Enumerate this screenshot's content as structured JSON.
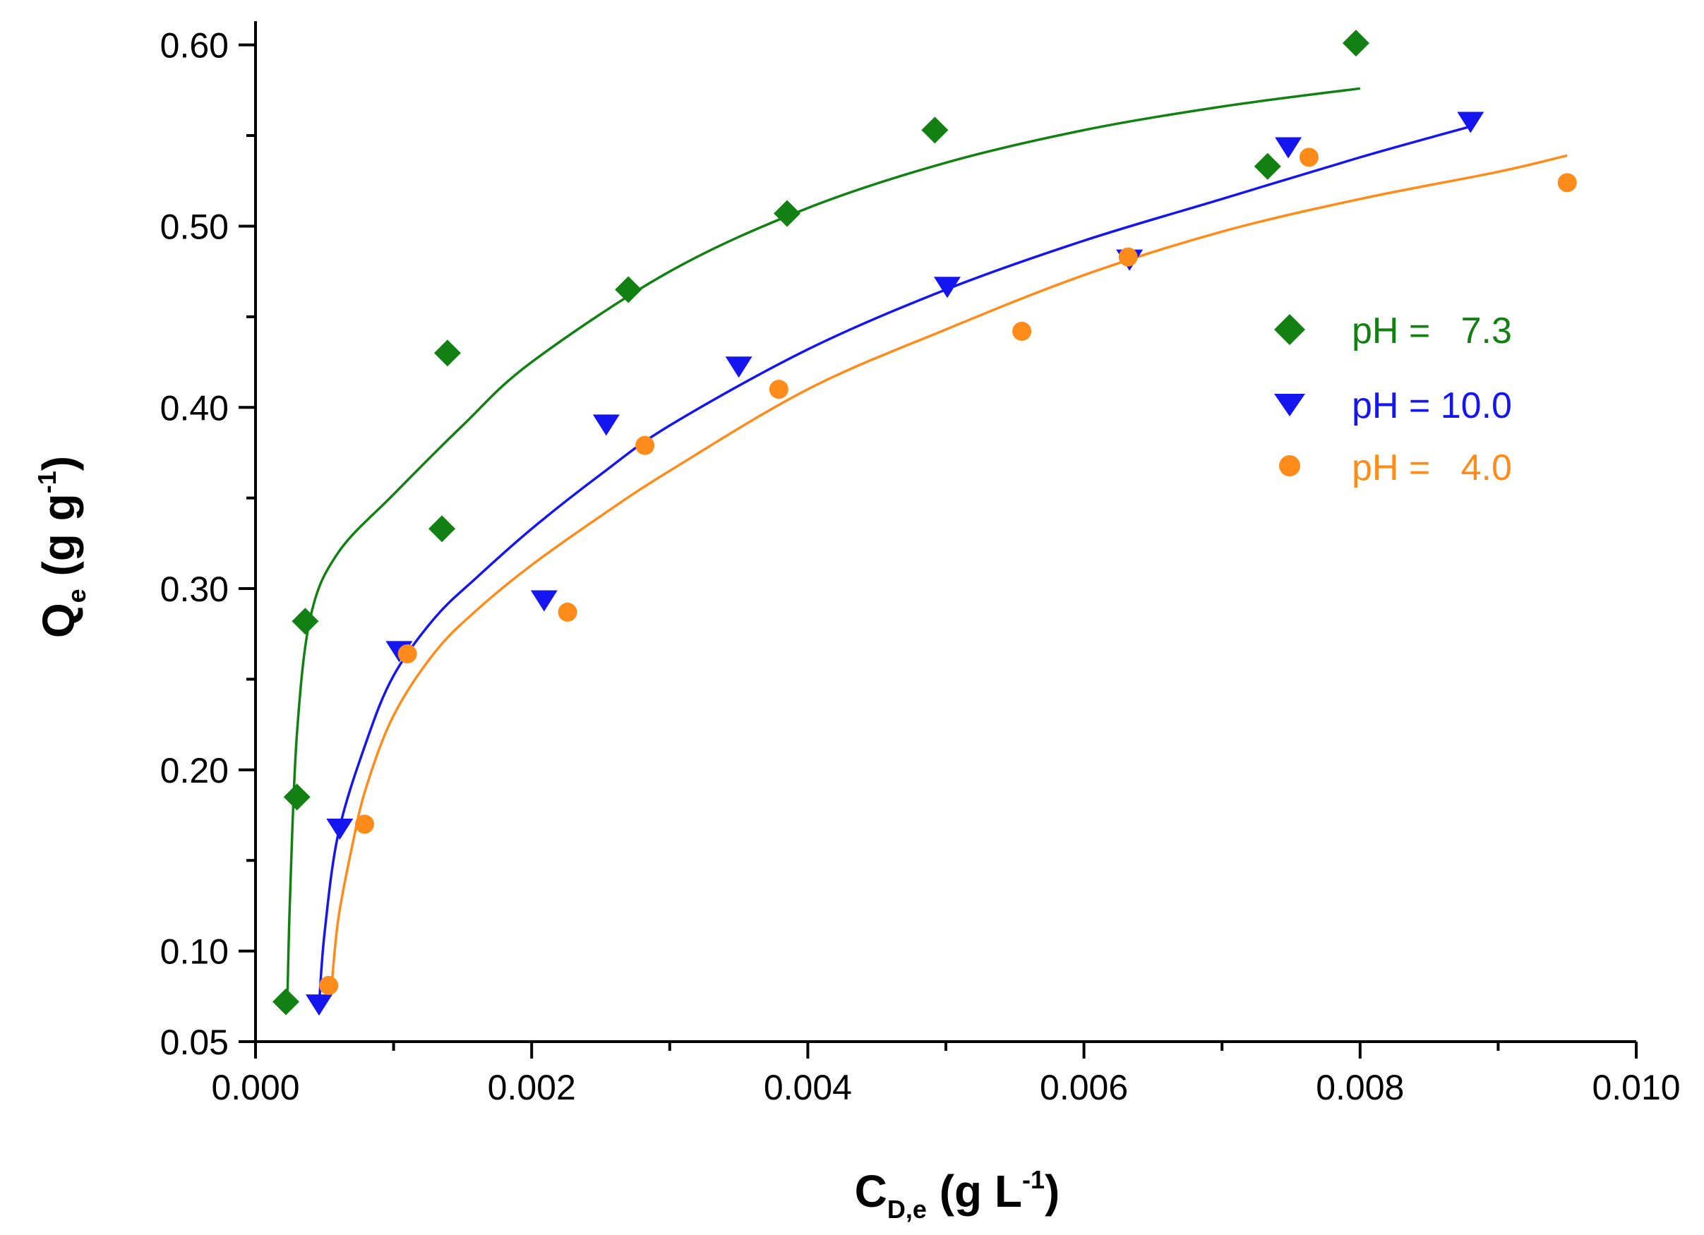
{
  "chart_data": {
    "type": "scatter",
    "title": "",
    "xlabel": {
      "main": "C",
      "sub": "D,e",
      "unit_pre": " (g L",
      "unit_sup": "-1",
      "unit_post": ")"
    },
    "ylabel": {
      "main": "Q",
      "sub": "e",
      "unit_pre": " (g g",
      "unit_sup": "-1",
      "unit_post": ")"
    },
    "xlim": [
      0,
      0.01
    ],
    "ylim": [
      0.05,
      0.61
    ],
    "x_ticks": [
      "0.000",
      "0.002",
      "0.004",
      "0.006",
      "0.008",
      "0.010"
    ],
    "y_ticks": [
      "0.05",
      "0.10",
      "0.20",
      "0.30",
      "0.40",
      "0.50",
      "0.60"
    ],
    "grid": false,
    "legend_position": "right-middle",
    "series": [
      {
        "name": "pH =   7.3",
        "color": "#138013",
        "marker": "diamond",
        "points": [
          [
            0.00022,
            0.072
          ],
          [
            0.0003,
            0.185
          ],
          [
            0.00036,
            0.282
          ],
          [
            0.00135,
            0.333
          ],
          [
            0.00139,
            0.43
          ],
          [
            0.0027,
            0.465
          ],
          [
            0.00385,
            0.507
          ],
          [
            0.00492,
            0.553
          ],
          [
            0.00733,
            0.533
          ],
          [
            0.00797,
            0.601
          ]
        ],
        "fit": [
          [
            0.00023,
            0.07
          ],
          [
            0.00025,
            0.13
          ],
          [
            0.0003,
            0.22
          ],
          [
            0.0004,
            0.285
          ],
          [
            0.0006,
            0.32
          ],
          [
            0.001,
            0.352
          ],
          [
            0.0015,
            0.39
          ],
          [
            0.002,
            0.425
          ],
          [
            0.003,
            0.475
          ],
          [
            0.004,
            0.51
          ],
          [
            0.005,
            0.535
          ],
          [
            0.006,
            0.553
          ],
          [
            0.007,
            0.566
          ],
          [
            0.008,
            0.576
          ]
        ]
      },
      {
        "name": "pH = 10.0",
        "color": "#1515f0",
        "marker": "triangle-down",
        "points": [
          [
            0.00046,
            0.071
          ],
          [
            0.00061,
            0.168
          ],
          [
            0.00104,
            0.266
          ],
          [
            0.00209,
            0.294
          ],
          [
            0.00254,
            0.391
          ],
          [
            0.0035,
            0.423
          ],
          [
            0.00501,
            0.467
          ],
          [
            0.00633,
            0.482
          ],
          [
            0.00748,
            0.544
          ],
          [
            0.0088,
            0.558
          ]
        ],
        "fit": [
          [
            0.00046,
            0.07
          ],
          [
            0.0005,
            0.11
          ],
          [
            0.0006,
            0.165
          ],
          [
            0.0008,
            0.215
          ],
          [
            0.001,
            0.252
          ],
          [
            0.0013,
            0.284
          ],
          [
            0.0016,
            0.306
          ],
          [
            0.002,
            0.333
          ],
          [
            0.0025,
            0.363
          ],
          [
            0.003,
            0.39
          ],
          [
            0.004,
            0.432
          ],
          [
            0.005,
            0.465
          ],
          [
            0.006,
            0.492
          ],
          [
            0.007,
            0.515
          ],
          [
            0.008,
            0.538
          ],
          [
            0.0088,
            0.555
          ]
        ]
      },
      {
        "name": "pH =   4.0",
        "color": "#ff8c1a",
        "marker": "circle",
        "points": [
          [
            0.00053,
            0.081
          ],
          [
            0.00079,
            0.17
          ],
          [
            0.0011,
            0.264
          ],
          [
            0.00226,
            0.287
          ],
          [
            0.00282,
            0.379
          ],
          [
            0.00379,
            0.41
          ],
          [
            0.00555,
            0.442
          ],
          [
            0.00632,
            0.483
          ],
          [
            0.00763,
            0.538
          ],
          [
            0.0095,
            0.524
          ]
        ],
        "fit": [
          [
            0.00055,
            0.08
          ],
          [
            0.0006,
            0.118
          ],
          [
            0.0007,
            0.158
          ],
          [
            0.0008,
            0.19
          ],
          [
            0.001,
            0.23
          ],
          [
            0.0013,
            0.265
          ],
          [
            0.0016,
            0.288
          ],
          [
            0.002,
            0.313
          ],
          [
            0.0025,
            0.34
          ],
          [
            0.003,
            0.365
          ],
          [
            0.004,
            0.41
          ],
          [
            0.005,
            0.443
          ],
          [
            0.006,
            0.473
          ],
          [
            0.007,
            0.497
          ],
          [
            0.008,
            0.515
          ],
          [
            0.009,
            0.53
          ],
          [
            0.0095,
            0.539
          ]
        ]
      }
    ]
  }
}
